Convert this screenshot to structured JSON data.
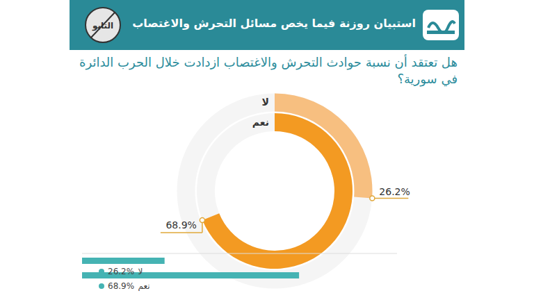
{
  "chart_data": [
    {
      "type": "radial_bar",
      "title": "استبيان روزنة فيما يخص مسائل التحرش والاغتصاب",
      "subtitle": "هل تعتقد أن نسبة حوادث التحرش والاغتصاب ازدادت خلال الحرب الدائرة في سورية؟",
      "annotations": [
        "التابو"
      ],
      "categories": [
        "لا",
        "نعم"
      ],
      "values": [
        26.2,
        68.9
      ],
      "value_labels": [
        "26.2%",
        "68.9%"
      ],
      "colors": [
        "#f7bf80",
        "#f39a22"
      ],
      "ylim": [
        0,
        100
      ],
      "data_labels": true
    },
    {
      "type": "bar",
      "orientation": "horizontal",
      "categories": [
        "لا",
        "نعم"
      ],
      "values": [
        26.2,
        68.9
      ],
      "value_labels": [
        "26.2%",
        "68.9%"
      ],
      "color": "#45b3b3",
      "xlim": [
        0,
        100
      ],
      "tick_labels": false,
      "data_labels": true
    }
  ]
}
